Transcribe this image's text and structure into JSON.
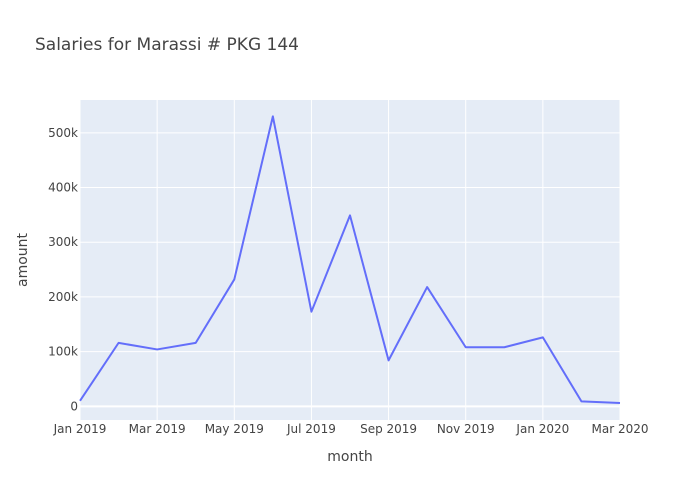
{
  "chart_data": {
    "type": "line",
    "title": "Salaries for Marassi # PKG 144",
    "xlabel": "month",
    "ylabel": "amount",
    "x": [
      "2019-01",
      "2019-02",
      "2019-03",
      "2019-04",
      "2019-05",
      "2019-06",
      "2019-07",
      "2019-08",
      "2019-09",
      "2019-10",
      "2019-11",
      "2019-12",
      "2020-01",
      "2020-02",
      "2020-03"
    ],
    "series": [
      {
        "values": [
          10000,
          116000,
          104000,
          116000,
          232000,
          530000,
          173000,
          349000,
          84000,
          218000,
          108000,
          108000,
          126000,
          9000,
          6000
        ]
      }
    ],
    "xlim": [
      "2019-01",
      "2020-03"
    ],
    "ylim": [
      -25000,
      560000
    ],
    "x_ticks": [
      {
        "value": "2019-01",
        "label": "Jan 2019"
      },
      {
        "value": "2019-03",
        "label": "Mar 2019"
      },
      {
        "value": "2019-05",
        "label": "May 2019"
      },
      {
        "value": "2019-07",
        "label": "Jul 2019"
      },
      {
        "value": "2019-09",
        "label": "Sep 2019"
      },
      {
        "value": "2019-11",
        "label": "Nov 2019"
      },
      {
        "value": "2020-01",
        "label": "Jan 2020"
      },
      {
        "value": "2020-03",
        "label": "Mar 2020"
      }
    ],
    "y_ticks": [
      {
        "value": 0,
        "label": "0"
      },
      {
        "value": 100000,
        "label": "100k"
      },
      {
        "value": 200000,
        "label": "200k"
      },
      {
        "value": 300000,
        "label": "300k"
      },
      {
        "value": 400000,
        "label": "400k"
      },
      {
        "value": 500000,
        "label": "500k"
      }
    ],
    "grid": true,
    "colors": {
      "line": "#636efa",
      "plot_background": "#e5ecf6",
      "grid": "#ffffff",
      "text": "#444444"
    }
  }
}
